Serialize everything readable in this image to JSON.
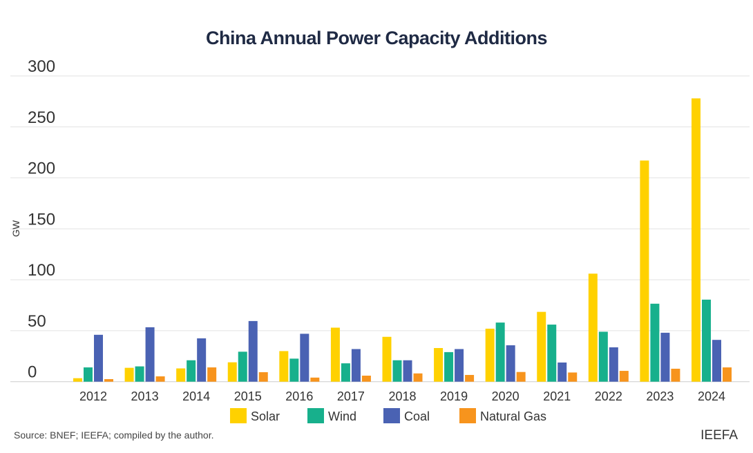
{
  "chart_data": {
    "type": "bar",
    "title": "China Annual Power Capacity Additions",
    "ylabel": "GW",
    "xlabel": "",
    "ylim": [
      0,
      300
    ],
    "yticks": [
      0,
      50,
      100,
      150,
      200,
      250,
      300
    ],
    "grid": true,
    "legend_position": "bottom",
    "categories": [
      "2012",
      "2013",
      "2014",
      "2015",
      "2016",
      "2017",
      "2018",
      "2019",
      "2020",
      "2021",
      "2022",
      "2023",
      "2024"
    ],
    "series": [
      {
        "name": "Solar",
        "color": "#FFD100",
        "values": [
          3.4,
          13.6,
          13,
          19,
          30,
          53,
          44,
          33,
          52,
          68.5,
          106,
          217,
          278
        ]
      },
      {
        "name": "Wind",
        "color": "#17B08C",
        "values": [
          14,
          15,
          21,
          29.4,
          22.6,
          18,
          21,
          29,
          58,
          56,
          49,
          76.5,
          80.5
        ]
      },
      {
        "name": "Coal",
        "color": "#4A62B3",
        "values": [
          46,
          53.4,
          42.5,
          59.5,
          47,
          32,
          21,
          32,
          35.7,
          18.8,
          33.7,
          48,
          41
        ]
      },
      {
        "name": "Natural Gas",
        "color": "#F7941D",
        "values": [
          2.5,
          5.2,
          14,
          9.3,
          4,
          5.9,
          8.1,
          6.6,
          9.5,
          9,
          10.6,
          12.7,
          14
        ]
      }
    ]
  },
  "footer": {
    "source": "Source: BNEF; IEEFA; compiled by the author.",
    "brand": "IEEFA"
  }
}
